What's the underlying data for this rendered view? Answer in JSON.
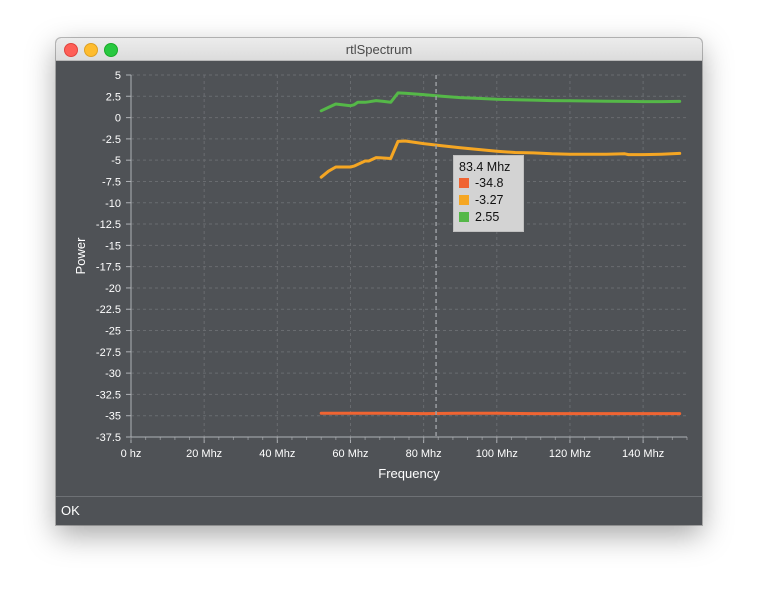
{
  "window": {
    "title": "rtlSpectrum"
  },
  "status": {
    "text": "OK"
  },
  "chart_data": {
    "type": "line",
    "title": "",
    "xlabel": "Frequency",
    "ylabel": "Power",
    "xlim": [
      0,
      152
    ],
    "ylim": [
      -37.5,
      5
    ],
    "x_ticks": [
      0,
      20,
      40,
      60,
      80,
      100,
      120,
      140
    ],
    "x_tick_labels": [
      "0 hz",
      "20 Mhz",
      "40 Mhz",
      "60 Mhz",
      "80 Mhz",
      "100 Mhz",
      "120 Mhz",
      "140 Mhz"
    ],
    "y_ticks": [
      5,
      2.5,
      0,
      -2.5,
      -5,
      -7.5,
      -10,
      -12.5,
      -15,
      -17.5,
      -20,
      -22.5,
      -25,
      -27.5,
      -30,
      -32.5,
      -35,
      -37.5
    ],
    "y_tick_labels": [
      "5",
      "2.5",
      "0",
      "-2.5",
      "-5",
      "-7.5",
      "-10",
      "-12.5",
      "-15",
      "-17.5",
      "-20",
      "-22.5",
      "-25",
      "-27.5",
      "-30",
      "-32.5",
      "-35",
      "-37.5"
    ],
    "grid": true,
    "crosshair_x": 83.4,
    "series": [
      {
        "color": "#f06432",
        "x": [
          52,
          60,
          70,
          80,
          90,
          100,
          110,
          120,
          130,
          140,
          150
        ],
        "y": [
          -34.7,
          -34.7,
          -34.7,
          -34.75,
          -34.7,
          -34.7,
          -34.75,
          -34.75,
          -34.75,
          -34.75,
          -34.75
        ]
      },
      {
        "color": "#f5a623",
        "x": [
          52,
          54,
          56,
          60,
          61,
          62,
          64,
          65,
          67,
          69,
          71,
          73,
          75,
          80,
          85,
          90,
          95,
          100,
          105,
          110,
          115,
          120,
          125,
          130,
          135,
          136,
          140,
          145,
          150
        ],
        "y": [
          -7,
          -6.3,
          -5.8,
          -5.8,
          -5.7,
          -5.5,
          -5.1,
          -5.1,
          -4.7,
          -4.75,
          -4.8,
          -2.8,
          -2.75,
          -3.05,
          -3.3,
          -3.55,
          -3.75,
          -3.95,
          -4.1,
          -4.15,
          -4.25,
          -4.3,
          -4.3,
          -4.3,
          -4.25,
          -4.35,
          -4.35,
          -4.3,
          -4.2
        ]
      },
      {
        "color": "#55b848",
        "x": [
          52,
          54,
          56,
          60,
          61,
          62,
          64,
          65,
          67,
          69,
          71,
          73,
          75,
          80,
          85,
          90,
          95,
          100,
          105,
          110,
          115,
          120,
          125,
          130,
          135,
          140,
          145,
          150
        ],
        "y": [
          0.8,
          1.2,
          1.6,
          1.4,
          1.5,
          1.8,
          1.8,
          1.85,
          2.0,
          1.9,
          1.8,
          2.9,
          2.85,
          2.7,
          2.5,
          2.35,
          2.25,
          2.15,
          2.1,
          2.05,
          2.0,
          1.98,
          1.95,
          1.92,
          1.9,
          1.88,
          1.88,
          1.9
        ]
      }
    ],
    "tooltip": {
      "title": "83.4 Mhz",
      "rows": [
        {
          "color": "#f06432",
          "value": "-34.8"
        },
        {
          "color": "#f5a623",
          "value": "-3.27"
        },
        {
          "color": "#55b848",
          "value": "2.55"
        }
      ]
    }
  }
}
